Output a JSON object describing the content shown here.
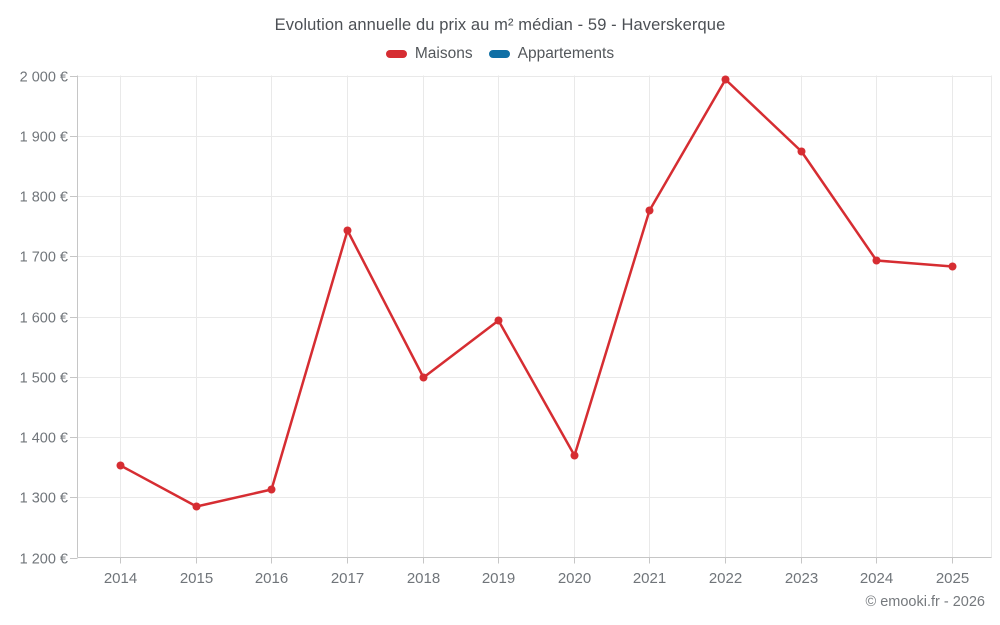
{
  "chart_data": {
    "type": "line",
    "title": "Evolution annuelle du prix au m² médian - 59 - Haverskerque",
    "categories": [
      "2014",
      "2015",
      "2016",
      "2017",
      "2018",
      "2019",
      "2020",
      "2021",
      "2022",
      "2023",
      "2024",
      "2025"
    ],
    "series": [
      {
        "name": "Maisons",
        "color": "#d62d32",
        "values": [
          1354,
          1286,
          1314,
          1743,
          1500,
          1595,
          1370,
          1776,
          1994,
          1875,
          1694,
          1683
        ]
      },
      {
        "name": "Appartements",
        "color": "#0f6fa5",
        "values": []
      }
    ],
    "xlabel": "",
    "ylabel": "",
    "ylim": [
      1200,
      2000
    ],
    "y_ticks": {
      "values": [
        1200,
        1300,
        1400,
        1500,
        1600,
        1700,
        1800,
        1900,
        2000
      ],
      "labels": [
        "1 200 €",
        "1 300 €",
        "1 400 €",
        "1 500 €",
        "1 600 €",
        "1 700 €",
        "1 800 €",
        "1 900 €",
        "2 000 €"
      ]
    },
    "grid": true,
    "legend_position": "top",
    "footer": "© emooki.fr - 2026"
  }
}
